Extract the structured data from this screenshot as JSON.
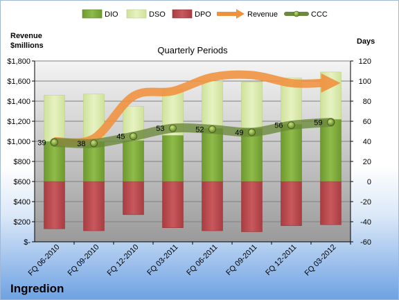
{
  "company": "Ingredion",
  "chart_data": {
    "type": "bar",
    "title": "Quarterly Periods",
    "left_axis_label": [
      "Revenue",
      "$millions"
    ],
    "right_axis_label": "Days",
    "categories": [
      "FQ 06-2010",
      "FQ 09-2010",
      "FQ 12-2010",
      "FQ 03-2011",
      "FQ 06-2011",
      "FQ 09-2011",
      "FQ 12-2011",
      "FQ 03-2012"
    ],
    "left_ylim": [
      0,
      1800
    ],
    "left_ticks": [
      0,
      200,
      400,
      600,
      800,
      1000,
      1200,
      1400,
      1600,
      1800
    ],
    "left_tick_labels": [
      "$-",
      "$200",
      "$400",
      "$600",
      "$800",
      "$1,000",
      "$1,200",
      "$1,400",
      "$1,600",
      "$1,800"
    ],
    "right_ylim": [
      -60,
      120
    ],
    "right_ticks": [
      -60,
      -40,
      -20,
      0,
      20,
      40,
      60,
      80,
      100,
      120
    ],
    "right_tick_labels": [
      "-60",
      "-40",
      "-20",
      "0",
      "20",
      "40",
      "60",
      "80",
      "100",
      "120"
    ],
    "legend": [
      "DIO",
      "DSO",
      "DPO",
      "Revenue",
      "CCC"
    ],
    "series": [
      {
        "name": "DIO",
        "axis": "right",
        "color": "#7aa33b",
        "values": [
          40,
          40,
          41,
          46,
          53,
          53,
          57,
          62
        ]
      },
      {
        "name": "DSO",
        "axis": "right",
        "color": "#d8e9a9",
        "values": [
          46,
          47,
          34,
          46,
          47,
          46,
          46,
          47
        ]
      },
      {
        "name": "DPO",
        "axis": "right",
        "color": "#b9464b",
        "values": [
          -47,
          -49,
          -33,
          -46,
          -49,
          -50,
          -44,
          -43
        ]
      },
      {
        "name": "Revenue",
        "axis": "left",
        "color": "#f0913e",
        "values": [
          1000,
          1030,
          1450,
          1500,
          1640,
          1660,
          1580,
          1580
        ]
      },
      {
        "name": "CCC",
        "axis": "right",
        "color": "#6b8a3b",
        "values": [
          39,
          38,
          45,
          53,
          52,
          49,
          56,
          59
        ]
      }
    ],
    "ccc_labels": [
      "39",
      "38",
      "45",
      "53",
      "52",
      "49",
      "56",
      "59"
    ],
    "grid": true
  }
}
